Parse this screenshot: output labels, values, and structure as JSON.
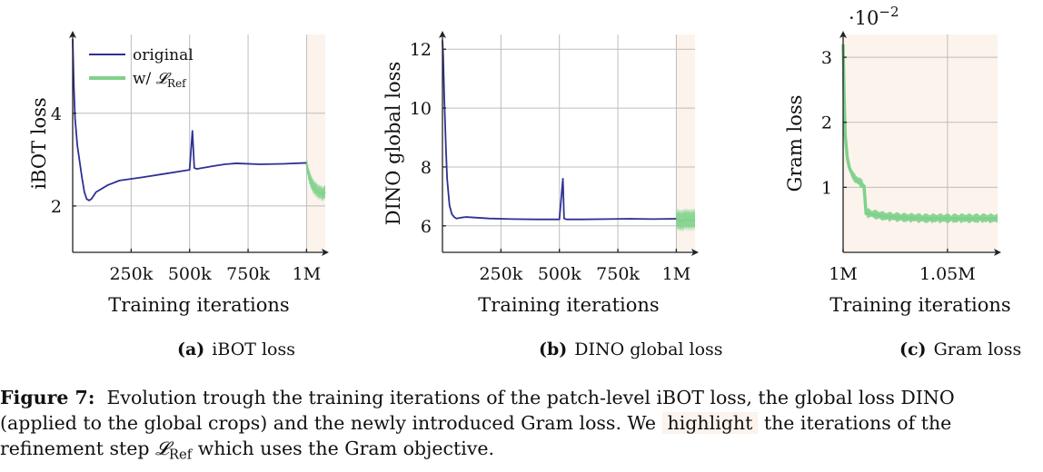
{
  "figure": {
    "caption": {
      "label": "Figure 7:",
      "line1": "Evolution trough the training iterations of the patch-level iBOT loss, the global loss DINO",
      "line2_before": "(applied to the global crops) and the newly introduced Gram loss.  We",
      "highlight_word": "highlight",
      "line2_after": "the iterations of the",
      "line3_before": "refinement step",
      "ref_symbol": "𝓛",
      "ref_subscript": "Ref",
      "line3_after": "which uses the Gram objective."
    },
    "colors": {
      "original": "#2e3192",
      "w_ref": "#7fd18b",
      "highlight": "#fbf3ec",
      "grid": "#bdbdbd"
    }
  },
  "chart_data": [
    {
      "type": "line",
      "subcaption_letter": "(a)",
      "subcaption_text": "iBOT loss",
      "xlabel": "Training iterations",
      "ylabel": "iBOT loss",
      "xlim": [
        0,
        1080000
      ],
      "ylim": [
        1,
        5.7
      ],
      "x_ticks": [
        250000,
        500000,
        750000,
        1000000
      ],
      "x_tick_labels": [
        "250k",
        "500k",
        "750k",
        "1M"
      ],
      "y_ticks": [
        2,
        4
      ],
      "y_tick_labels": [
        "2",
        "4"
      ],
      "grid": true,
      "legend": {
        "placement": "top-left",
        "entries": [
          {
            "label": "original",
            "series": "original"
          },
          {
            "label_prefix": "w/ ",
            "label_symbol": "𝓛",
            "label_sub": "Ref",
            "series": "w_ref"
          }
        ]
      },
      "highlight_x": [
        1000000,
        1080000
      ],
      "series": [
        {
          "key": "original",
          "x": [
            0,
            5000,
            10000,
            20000,
            30000,
            40000,
            50000,
            60000,
            70000,
            80000,
            100000,
            150000,
            200000,
            300000,
            400000,
            500000,
            512000,
            520000,
            530000,
            600000,
            650000,
            700000,
            800000,
            900000,
            1000000
          ],
          "y": [
            5.6,
            4.6,
            3.9,
            3.3,
            2.95,
            2.6,
            2.3,
            2.15,
            2.12,
            2.15,
            2.3,
            2.45,
            2.55,
            2.62,
            2.7,
            2.78,
            3.62,
            2.82,
            2.8,
            2.86,
            2.9,
            2.92,
            2.9,
            2.91,
            2.93
          ]
        },
        {
          "key": "w_ref",
          "x": [
            1000000,
            1010000,
            1020000,
            1030000,
            1040000,
            1050000,
            1060000,
            1070000,
            1080000
          ],
          "y": [
            2.9,
            2.65,
            2.5,
            2.4,
            2.35,
            2.3,
            2.28,
            2.25,
            2.3
          ],
          "band_halfwidth": 0.18
        }
      ]
    },
    {
      "type": "line",
      "subcaption_letter": "(b)",
      "subcaption_text": "DINO global loss",
      "xlabel": "Training iterations",
      "ylabel": "DINO global loss",
      "xlim": [
        0,
        1080000
      ],
      "ylim": [
        5.1,
        12.5
      ],
      "x_ticks": [
        250000,
        500000,
        750000,
        1000000
      ],
      "x_tick_labels": [
        "250k",
        "500k",
        "750k",
        "1M"
      ],
      "y_ticks": [
        6,
        8,
        10,
        12
      ],
      "y_tick_labels": [
        "6",
        "8",
        "10",
        "12"
      ],
      "grid": true,
      "highlight_x": [
        1000000,
        1080000
      ],
      "series": [
        {
          "key": "original",
          "x": [
            0,
            3000,
            8000,
            15000,
            20000,
            30000,
            40000,
            50000,
            60000,
            80000,
            100000,
            200000,
            300000,
            400000,
            500000,
            515000,
            520000,
            530000,
            600000,
            700000,
            800000,
            900000,
            1000000
          ],
          "y": [
            12.3,
            11.8,
            10.3,
            8.6,
            7.6,
            6.7,
            6.4,
            6.3,
            6.25,
            6.28,
            6.3,
            6.25,
            6.23,
            6.22,
            6.22,
            7.6,
            6.25,
            6.22,
            6.22,
            6.23,
            6.24,
            6.23,
            6.24
          ]
        },
        {
          "key": "w_ref",
          "x": [
            1000000,
            1020000,
            1040000,
            1060000,
            1080000
          ],
          "y": [
            6.2,
            6.15,
            6.2,
            6.18,
            6.2
          ],
          "band_halfwidth": 0.4
        }
      ]
    },
    {
      "type": "line",
      "subcaption_letter": "(c)",
      "subcaption_text": "Gram loss",
      "xlabel": "Training iterations",
      "ylabel": "Gram loss",
      "y_exponent": "·10",
      "y_exponent_power": "−2",
      "xlim": [
        1000000,
        1074000
      ],
      "ylim": [
        0,
        3.35
      ],
      "x_ticks": [
        1000000,
        1050000
      ],
      "x_tick_labels": [
        "1M",
        "1.05M"
      ],
      "y_ticks": [
        1,
        2,
        3
      ],
      "y_tick_labels": [
        "1",
        "2",
        "3"
      ],
      "grid": true,
      "highlight_x": [
        1000000,
        1074000
      ],
      "series": [
        {
          "key": "w_ref",
          "x": [
            1000000,
            1000500,
            1001000,
            1002000,
            1003000,
            1005000,
            1007000,
            1009000,
            1010000,
            1011000,
            1012000,
            1015000,
            1020000,
            1030000,
            1040000,
            1050000,
            1060000,
            1074000
          ],
          "y": [
            3.2,
            2.4,
            1.8,
            1.45,
            1.3,
            1.15,
            1.1,
            1.05,
            1.02,
            0.6,
            0.6,
            0.58,
            0.55,
            0.53,
            0.52,
            0.52,
            0.52,
            0.52
          ],
          "band_halfwidth": 0.08
        }
      ]
    }
  ]
}
